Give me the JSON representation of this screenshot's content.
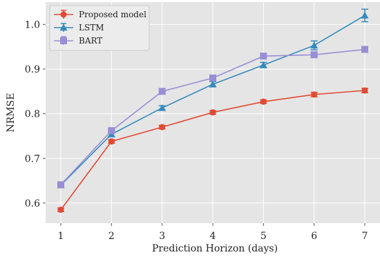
{
  "chart_data": {
    "type": "line",
    "title": "",
    "xlabel": "Prediction Horizon (days)",
    "ylabel": "NRMSE",
    "x": [
      1,
      2,
      3,
      4,
      5,
      6,
      7
    ],
    "xlim": [
      0.7,
      7.3
    ],
    "ylim": [
      0.555,
      1.05
    ],
    "yticks": [
      0.6,
      0.7,
      0.8,
      0.9,
      1.0
    ],
    "yticklabels": [
      "0.6",
      "0.7",
      "0.8",
      "0.9",
      "1.0"
    ],
    "xticklabels": [
      "1",
      "2",
      "3",
      "4",
      "5",
      "6",
      "7"
    ],
    "grid": true,
    "legend_position": "top-left",
    "series": [
      {
        "name": "Proposed model",
        "color": "#e24a33",
        "marker": "circle",
        "values": [
          0.585,
          0.738,
          0.77,
          0.803,
          0.827,
          0.843,
          0.852
        ],
        "errors": [
          0.004,
          0.004,
          0.004,
          0.004,
          0.004,
          0.005,
          0.005
        ]
      },
      {
        "name": "LSTM",
        "color": "#348abd",
        "marker": "triangle",
        "values": [
          0.64,
          0.754,
          0.813,
          0.866,
          0.909,
          0.953,
          1.02
        ],
        "errors": [
          0.004,
          0.005,
          0.005,
          0.006,
          0.006,
          0.01,
          0.014
        ]
      },
      {
        "name": "BART",
        "color": "#988ed5",
        "marker": "square",
        "values": [
          0.641,
          0.762,
          0.85,
          0.88,
          0.929,
          0.932,
          0.944
        ],
        "errors": [
          0.004,
          0.004,
          0.006,
          0.006,
          0.006,
          0.005,
          0.006
        ]
      }
    ]
  }
}
